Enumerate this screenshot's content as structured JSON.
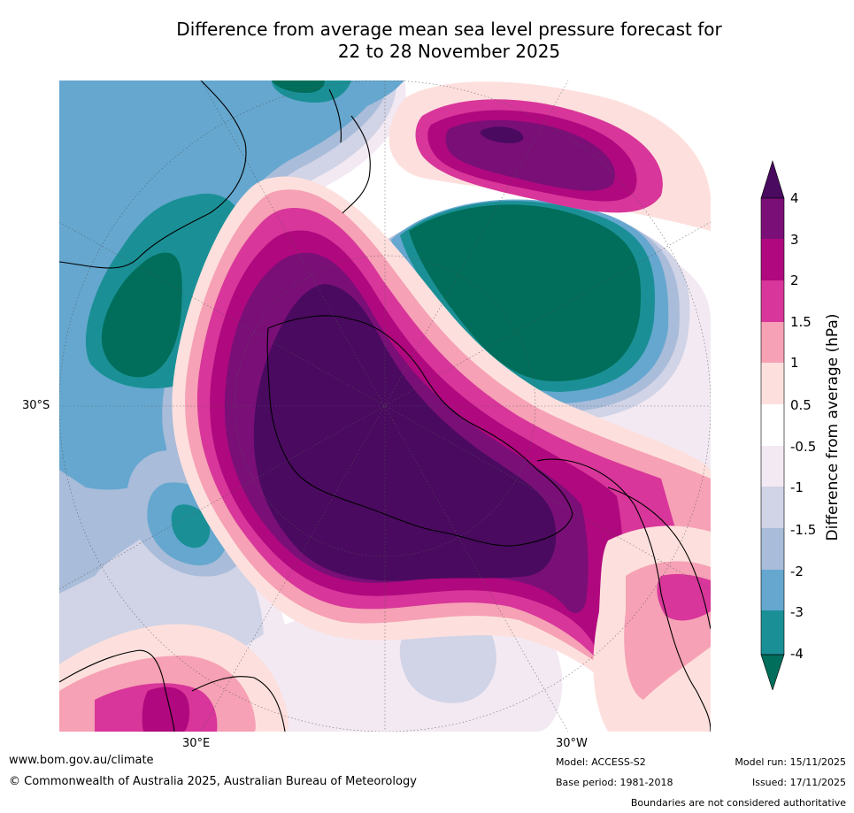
{
  "title": {
    "line1": "Difference from average mean sea level pressure forecast for",
    "line2": "22 to 28 November 2025"
  },
  "axis_labels": {
    "lat_30s": "30°S",
    "lon_30e": "30°E",
    "lon_30w": "30°W"
  },
  "colorbar": {
    "title": "Difference from average (hPa)",
    "ticks": [
      "4",
      "3",
      "2",
      "1.5",
      "1",
      "0.5",
      "-0.5",
      "-1",
      "-1.5",
      "-2",
      "-3",
      "-4"
    ],
    "colors": {
      "gt4": "#4a0a60",
      "3to4": "#7a0f78",
      "2to3": "#b0087e",
      "1_5to2": "#d8369a",
      "1to1_5": "#f6a1b5",
      "0_5to1": "#fde0dd",
      "neutral": "#ffffff",
      "m1to-0_5": "#f2e9f3",
      "m1_5to-1": "#d1d3e6",
      "m2to-1_5": "#a9bcd9",
      "m3to-2": "#65a7cf",
      "m4to-3": "#1a9096",
      "lt-4": "#006e5a"
    }
  },
  "footer": {
    "url": "www.bom.gov.au/climate",
    "copyright": "© Commonwealth of Australia 2025, Australian Bureau of Meteorology",
    "model": "Model: ACCESS-S2",
    "base_period": "Base period: 1981-2018",
    "model_run": "Model run: 15/11/2025",
    "issued": "Issued: 17/11/2025",
    "disclaimer": "Boundaries are not considered authoritative"
  }
}
